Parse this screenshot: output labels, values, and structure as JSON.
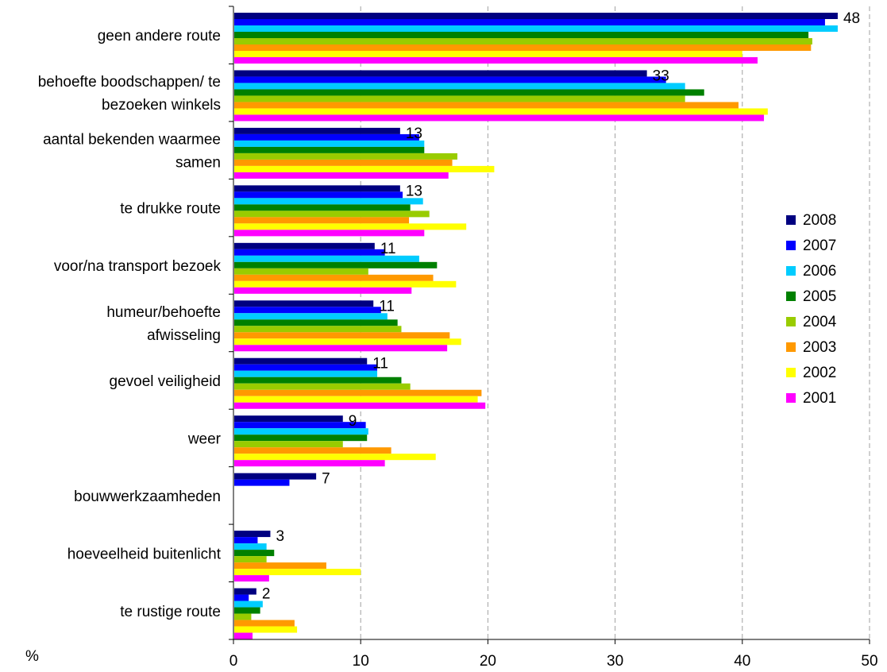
{
  "chart_data": {
    "type": "bar",
    "orientation": "horizontal",
    "x_unit_label": "%",
    "xlim": [
      0,
      50
    ],
    "x_ticks": [
      "0",
      "10",
      "20",
      "30",
      "40",
      "50"
    ],
    "grid": "vertical dashed",
    "legend_position": "right",
    "categories": [
      "geen andere route",
      "behoefte boodschappen/ te bezoeken winkels",
      "aantal bekenden waarmee samen",
      "te drukke route",
      "voor/na transport bezoek",
      "humeur/behoefte afwisseling",
      "gevoel veiligheid",
      "weer",
      "bouwwerkzaamheden",
      "hoeveelheid buitenlicht",
      "te rustige route"
    ],
    "category_lines": [
      [
        "geen andere route"
      ],
      [
        "behoefte boodschappen/ te",
        "bezoeken winkels"
      ],
      [
        "aantal bekenden waarmee",
        "samen"
      ],
      [
        "te drukke route"
      ],
      [
        "voor/na transport bezoek"
      ],
      [
        "humeur/behoefte",
        "afwisseling"
      ],
      [
        "gevoel veiligheid"
      ],
      [
        "weer"
      ],
      [
        "bouwwerkzaamheden"
      ],
      [
        "hoeveelheid buitenlicht"
      ],
      [
        "te rustige route"
      ]
    ],
    "data_labels": [
      "48",
      "33",
      "13",
      "13",
      "11",
      "11",
      "11",
      "9",
      "7",
      "3",
      "2"
    ],
    "series": [
      {
        "name": "2008",
        "color": "#000080",
        "values": [
          47.5,
          32.5,
          13.1,
          13.1,
          11.1,
          11.0,
          10.5,
          8.6,
          6.5,
          2.9,
          1.8
        ]
      },
      {
        "name": "2007",
        "color": "#0000ff",
        "values": [
          46.5,
          34.0,
          14.6,
          13.3,
          11.9,
          11.6,
          11.3,
          10.4,
          4.4,
          1.9,
          1.2
        ]
      },
      {
        "name": "2006",
        "color": "#00ccff",
        "values": [
          47.5,
          35.5,
          15.0,
          14.9,
          14.6,
          12.1,
          11.3,
          10.6,
          null,
          2.6,
          2.3
        ]
      },
      {
        "name": "2005",
        "color": "#008000",
        "values": [
          45.2,
          37.0,
          15.0,
          13.9,
          16.0,
          12.9,
          13.2,
          10.5,
          null,
          3.2,
          2.1
        ]
      },
      {
        "name": "2004",
        "color": "#99cc00",
        "values": [
          45.5,
          35.5,
          17.6,
          15.4,
          10.6,
          13.2,
          13.9,
          8.6,
          null,
          2.6,
          1.4
        ]
      },
      {
        "name": "2003",
        "color": "#ff9900",
        "values": [
          45.4,
          39.7,
          17.2,
          13.8,
          15.7,
          17.0,
          19.5,
          12.4,
          null,
          7.3,
          4.8
        ]
      },
      {
        "name": "2002",
        "color": "#ffff00",
        "values": [
          40.0,
          42.0,
          20.5,
          18.3,
          17.5,
          17.9,
          19.2,
          15.9,
          null,
          10.0,
          5.0
        ]
      },
      {
        "name": "2001",
        "color": "#ff00ff",
        "values": [
          41.2,
          41.7,
          16.9,
          15.0,
          14.0,
          16.8,
          19.8,
          11.9,
          null,
          2.8,
          1.5
        ]
      }
    ]
  }
}
